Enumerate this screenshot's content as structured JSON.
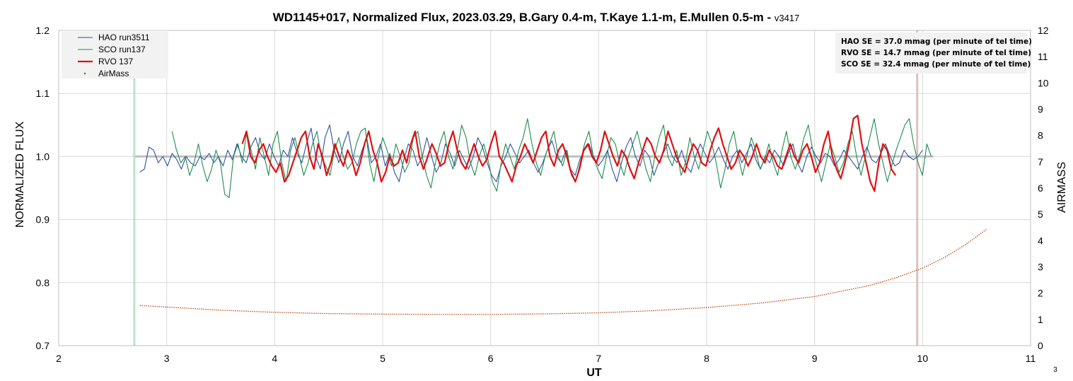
{
  "chart_data": {
    "type": "line",
    "title": "WD1145+017, Normalized Flux, 2023.03.29, B.Gary 0.4-m, T.Kaye 1.1-m, E.Mullen 0.5-m - ",
    "version": "v3417",
    "xlabel": "UT",
    "ylabel": "NORMALIZED FLUX",
    "y2label": "AIRMASS",
    "xlim": [
      2,
      11
    ],
    "ylim": [
      0.7,
      1.2
    ],
    "y2lim": [
      0,
      12
    ],
    "xticks": [
      "2",
      "3",
      "4",
      "5",
      "6",
      "7",
      "8",
      "9",
      "10",
      "11"
    ],
    "yticks": [
      "0.7",
      "0.8",
      "0.9",
      "1.0",
      "1.1",
      "1.2"
    ],
    "y2ticks": [
      "0",
      "1",
      "2",
      "3",
      "4",
      "5",
      "6",
      "7",
      "8",
      "9",
      "10",
      "11",
      "12"
    ],
    "grid": true,
    "legend_position": "top-left",
    "reference_line": 1.0,
    "vertical_markers": [
      {
        "x": 2.7,
        "color": "#b9e4c9"
      },
      {
        "x": 9.95,
        "color": "#dfc1c1"
      }
    ],
    "annotations": [
      "HAO SE = 37.0 mmag (per minute of tel time)",
      "RVO SE = 14.7 mmag (per minute of tel time)",
      "SCO SE  = 32.4 mmag (per minute of tel time)"
    ],
    "series": [
      {
        "name": "HAO run3511",
        "color": "#2f4fa0",
        "axis": "left",
        "x_start": 2.75,
        "x_end": 10.0,
        "values": [
          0.975,
          0.98,
          1.015,
          1.01,
          0.99,
          1.0,
          0.985,
          1.005,
          0.995,
          0.98,
          1.0,
          0.99,
          0.985,
          1.0,
          0.995,
          1.005,
          0.99,
          1.0,
          0.985,
          1.01,
          0.995,
          1.02,
          1.0,
          0.99,
          1.015,
          1.03,
          1.005,
          0.995,
          1.02,
          1.0,
          0.985,
          1.01,
          1.0,
          1.03,
          1.005,
          0.99,
          1.02,
          1.045,
          1.0,
          0.98,
          1.03,
          1.05,
          1.01,
          0.99,
          1.02,
          1.04,
          1.0,
          0.985,
          1.01,
          1.03,
          0.99,
          1.0,
          1.02,
          0.985,
          1.005,
          0.975,
          0.96,
          0.995,
          1.02,
          1.01,
          0.985,
          1.0,
          1.03,
          1.0,
          0.975,
          0.99,
          1.02,
          1.005,
          0.985,
          1.01,
          0.995,
          0.98,
          1.0,
          1.03,
          1.015,
          0.99,
          0.97,
          0.96,
          0.985,
          1.0,
          1.02,
          1.005,
          0.99,
          1.0,
          1.01,
          0.99,
          0.975,
          0.99,
          1.01,
          1.025,
          1.0,
          0.99,
          1.01,
          0.98,
          0.97,
          0.995,
          1.01,
          1.02,
          1.0,
          0.985,
          0.995,
          1.01,
          0.98,
          0.96,
          0.99,
          1.015,
          1.03,
          1.0,
          0.985,
          1.01,
          1.0,
          0.97,
          0.99,
          1.005,
          1.02,
          1.0,
          0.99,
          1.01,
          0.985,
          0.975,
          1.0,
          1.02,
          1.005,
          0.99,
          1.0,
          1.015,
          0.995,
          0.98,
          1.0,
          1.01,
          0.99,
          1.005,
          1.02,
          0.995,
          0.98,
          1.0,
          0.99,
          1.01,
          1.0,
          0.985,
          1.005,
          1.02,
          0.99,
          0.975,
          1.0,
          1.015,
          1.0,
          0.99,
          1.005,
          1.0,
          0.985,
          0.995,
          1.01,
          1.0,
          0.99,
          0.98,
          1.0,
          1.015,
          0.995,
          0.99,
          1.005,
          1.02,
          1.0,
          0.985,
          0.99,
          1.01,
          1.0,
          0.995,
          1.0,
          1.01
        ]
      },
      {
        "name": "SCO run137",
        "color": "#1e8c4e",
        "axis": "left",
        "x_start": 3.05,
        "x_end": 10.08,
        "values": [
          1.04,
          1.01,
          0.99,
          1.0,
          0.97,
          0.99,
          1.02,
          0.985,
          0.96,
          0.98,
          1.01,
          0.99,
          0.94,
          0.935,
          1.0,
          1.02,
          0.99,
          1.04,
          1.01,
          0.98,
          1.03,
          1.0,
          0.97,
          1.02,
          1.04,
          0.99,
          0.96,
          1.01,
          1.03,
          1.0,
          0.97,
          0.99,
          1.02,
          1.04,
          1.0,
          0.985,
          0.97,
          1.01,
          1.03,
          1.0,
          0.98,
          0.99,
          1.02,
          1.04,
          1.045,
          0.99,
          0.96,
          1.0,
          1.03,
          1.01,
          0.985,
          1.02,
          1.0,
          0.975,
          0.99,
          1.03,
          1.04,
          1.0,
          0.97,
          0.95,
          0.99,
          1.02,
          1.04,
          1.0,
          0.98,
          1.01,
          1.05,
          1.03,
          0.99,
          0.97,
          1.0,
          1.02,
          0.995,
          0.96,
          0.945,
          0.99,
          1.02,
          1.0,
          0.98,
          1.01,
          1.03,
          1.06,
          1.02,
          0.99,
          0.97,
          1.0,
          1.02,
          1.04,
          1.0,
          0.985,
          1.01,
          0.97,
          0.96,
          0.99,
          1.02,
          1.04,
          1.0,
          0.98,
          0.965,
          1.0,
          1.03,
          1.02,
          0.99,
          0.97,
          1.0,
          1.02,
          1.04,
          1.01,
          0.98,
          0.96,
          1.0,
          1.03,
          1.05,
          1.0,
          0.985,
          1.01,
          0.97,
          0.99,
          1.03,
          1.0,
          0.98,
          1.01,
          1.04,
          1.02,
          0.99,
          0.95,
          0.98,
          1.02,
          1.04,
          1.0,
          0.97,
          1.0,
          1.03,
          1.01,
          0.98,
          0.995,
          1.02,
          0.99,
          0.97,
          1.01,
          1.04,
          1.0,
          0.98,
          1.0,
          1.03,
          1.05,
          1.01,
          0.985,
          0.96,
          0.99,
          1.02,
          1.0,
          0.975,
          0.99,
          1.02,
          1.04,
          1.0,
          0.97,
          1.0,
          1.03,
          1.06,
          1.02,
          0.99,
          0.96,
          0.985,
          1.01,
          1.03,
          1.05,
          1.06,
          1.02,
          0.99,
          0.97,
          1.02,
          1.0
        ]
      },
      {
        "name": "RVO 137",
        "color": "#e01010",
        "axis": "left",
        "x_start": 3.7,
        "x_end": 9.75,
        "values": [
          1.02,
          1.04,
          1.0,
          0.99,
          1.01,
          1.02,
          1.0,
          0.985,
          0.975,
          0.99,
          0.96,
          0.97,
          0.99,
          1.01,
          1.03,
          1.04,
          1.0,
          0.98,
          1.02,
          1.0,
          0.97,
          0.99,
          1.02,
          1.0,
          0.985,
          1.01,
          0.995,
          0.97,
          0.99,
          1.02,
          1.04,
          1.01,
          0.99,
          0.96,
          0.975,
          1.0,
          0.985,
          0.99,
          1.01,
          0.99,
          1.02,
          1.04,
          1.0,
          0.98,
          1.0,
          1.02,
          1.005,
          0.985,
          0.99,
          1.02,
          1.04,
          1.01,
          0.99,
          0.98,
          1.0,
          1.02,
          1.0,
          0.985,
          0.995,
          1.02,
          1.04,
          1.0,
          0.99,
          0.975,
          0.96,
          0.985,
          1.0,
          1.02,
          1.005,
          0.99,
          1.01,
          1.03,
          1.04,
          1.0,
          0.985,
          1.01,
          1.02,
          1.0,
          0.975,
          0.96,
          0.98,
          1.01,
          1.02,
          1.0,
          0.99,
          1.01,
          1.04,
          1.02,
          1.0,
          0.985,
          1.01,
          1.0,
          0.98,
          0.965,
          0.99,
          1.01,
          1.03,
          1.02,
          1.0,
          0.99,
          1.01,
          1.04,
          1.02,
          1.0,
          0.985,
          0.975,
          1.0,
          1.02,
          1.01,
          0.99,
          0.985,
          1.01,
          1.03,
          1.045,
          1.02,
          1.0,
          0.98,
          0.99,
          1.01,
          1.0,
          0.985,
          1.0,
          1.02,
          1.0,
          0.99,
          1.01,
          1.0,
          0.985,
          0.98,
          1.0,
          1.02,
          1.0,
          0.99,
          1.01,
          1.02,
          1.0,
          0.975,
          0.99,
          1.02,
          1.04,
          1.0,
          0.98,
          0.965,
          0.99,
          1.02,
          1.06,
          1.065,
          1.02,
          0.99,
          0.96,
          0.945,
          0.99,
          1.02,
          1.01,
          0.98,
          0.97
        ]
      },
      {
        "name": "AirMass",
        "color": "#b84a12",
        "axis": "right",
        "x": [
          2.75,
          3.0,
          3.5,
          4.0,
          4.5,
          5.0,
          5.5,
          6.0,
          6.5,
          7.0,
          7.5,
          8.0,
          8.5,
          9.0,
          9.5,
          9.75,
          10.0,
          10.2,
          10.4,
          10.6
        ],
        "values": [
          1.53,
          1.47,
          1.35,
          1.27,
          1.22,
          1.2,
          1.19,
          1.19,
          1.21,
          1.25,
          1.33,
          1.45,
          1.62,
          1.87,
          2.28,
          2.58,
          2.95,
          3.35,
          3.85,
          4.45
        ]
      }
    ]
  },
  "page": {
    "page_number": "3"
  }
}
